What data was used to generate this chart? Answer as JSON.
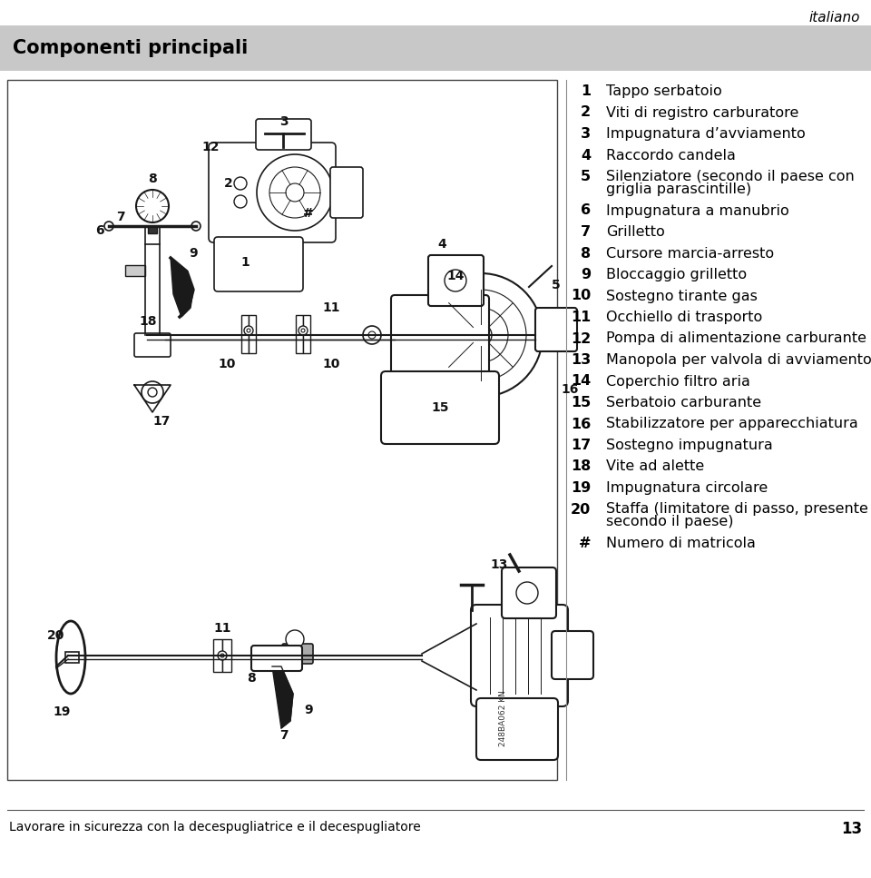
{
  "page_title": "italiano",
  "section_title": "Componenti principali",
  "header_bg": "#c8c8c8",
  "footer_text": "Lavorare in sicurezza con la decespugliatrice e il decespugliatore",
  "footer_page": "13",
  "items": [
    {
      "num": "1",
      "text": "Tappo serbatoio"
    },
    {
      "num": "2",
      "text": "Viti di registro carburatore"
    },
    {
      "num": "3",
      "text": "Impugnatura d’avviamento"
    },
    {
      "num": "4",
      "text": "Raccordo candela"
    },
    {
      "num": "5",
      "text": "Silenziatore (secondo il paese con\ngriglia parascintille)"
    },
    {
      "num": "6",
      "text": "Impugnatura a manubrio"
    },
    {
      "num": "7",
      "text": "Grilletto"
    },
    {
      "num": "8",
      "text": "Cursore marcia-arresto"
    },
    {
      "num": "9",
      "text": "Bloccaggio grilletto"
    },
    {
      "num": "10",
      "text": "Sostegno tirante gas"
    },
    {
      "num": "11",
      "text": "Occhiello di trasporto"
    },
    {
      "num": "12",
      "text": "Pompa di alimentazione carburante"
    },
    {
      "num": "13",
      "text": "Manopola per valvola di avviamento"
    },
    {
      "num": "14",
      "text": "Coperchio filtro aria"
    },
    {
      "num": "15",
      "text": "Serbatoio carburante"
    },
    {
      "num": "16",
      "text": "Stabilizzatore per apparecchiatura"
    },
    {
      "num": "17",
      "text": "Sostegno impugnatura"
    },
    {
      "num": "18",
      "text": "Vite ad alette"
    },
    {
      "num": "19",
      "text": "Impugnatura circolare"
    },
    {
      "num": "20",
      "text": "Staffa (limitatore di passo, presente\nsecondo il paese)"
    },
    {
      "num": "#",
      "text": "Numero di matricola"
    }
  ],
  "bg_color": "#ffffff",
  "text_color": "#000000",
  "title_color": "#000000",
  "header_text_color": "#000000",
  "divider_color": "#888888",
  "image_outline_color": "#333333",
  "line_color": "#1a1a1a"
}
